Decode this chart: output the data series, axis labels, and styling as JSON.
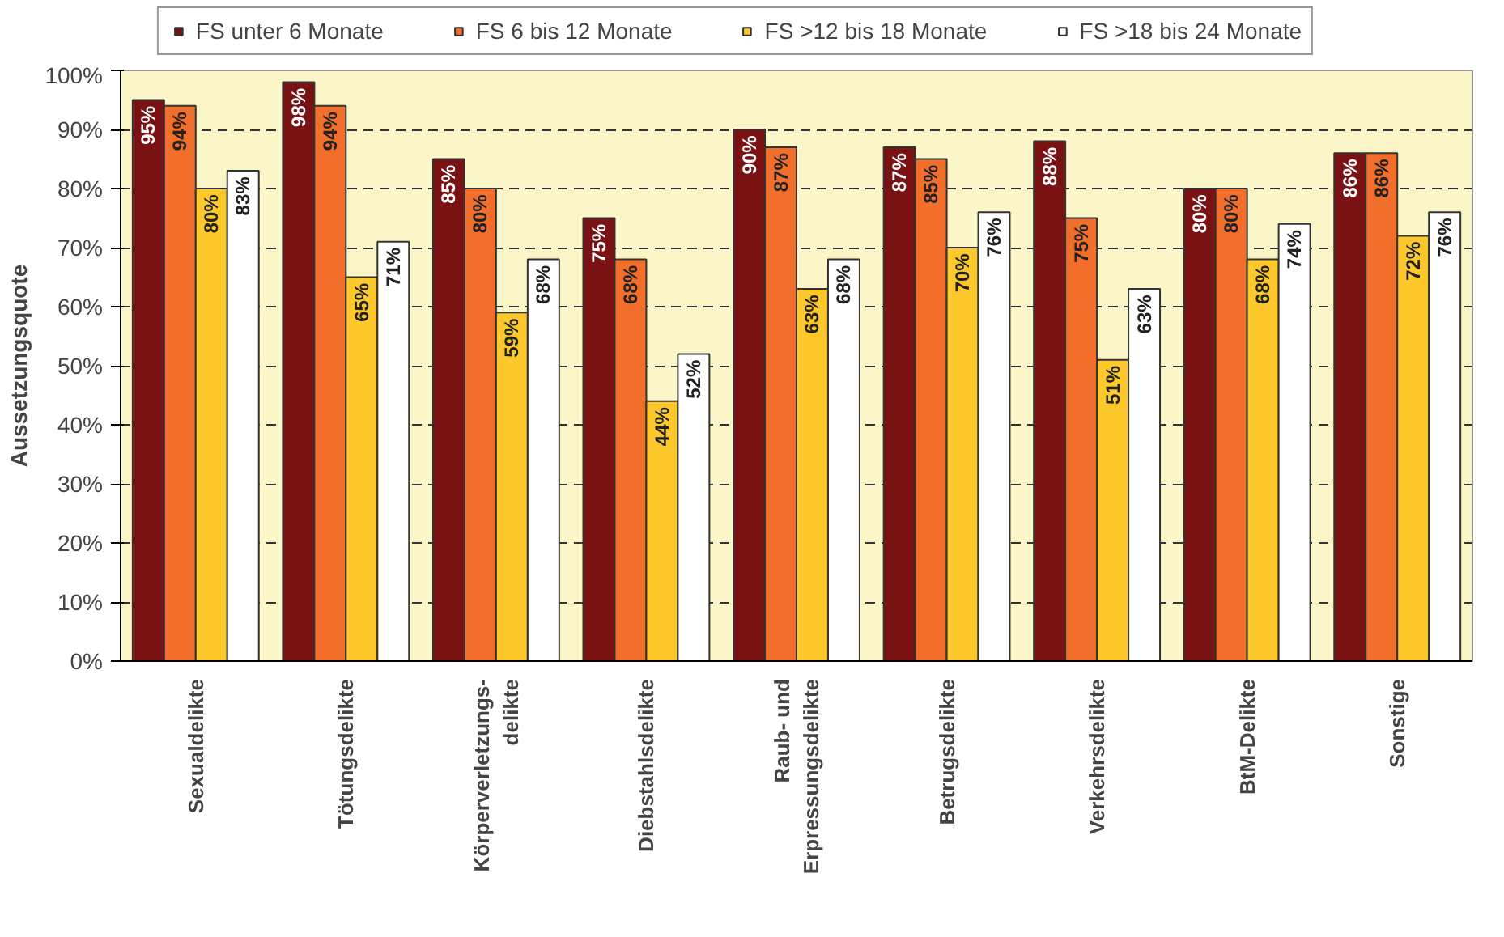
{
  "chart_data": {
    "type": "bar",
    "ylabel": "Aussetzungsquote",
    "categories": [
      "Sexualdelikte",
      "Tötungsdelikte",
      "Körperverletzungs-\ndelikte",
      "Diebstahlsdelikte",
      "Raub- und\nErpressungsdelikte",
      "Betrugsdelikte",
      "Verkehrsdelikte",
      "BtM-Delikte",
      "Sonstige"
    ],
    "series": [
      {
        "name": "FS unter 6 Monate",
        "color": "#7a1214",
        "values": [
          95,
          98,
          85,
          75,
          90,
          87,
          88,
          80,
          86
        ],
        "value_labels": [
          "95%",
          "98%",
          "85%",
          "75%",
          "90%",
          "87%",
          "88%",
          "80%",
          "86%"
        ]
      },
      {
        "name": "FS 6 bis 12 Monate",
        "color": "#f26e2b",
        "values": [
          94,
          94,
          80,
          68,
          87,
          85,
          75,
          80,
          86
        ],
        "value_labels": [
          "94%",
          "94%",
          "80%",
          "68%",
          "87%",
          "85%",
          "75%",
          "80%",
          "86%"
        ]
      },
      {
        "name": "FS >12 bis 18 Monate",
        "color": "#fdc82c",
        "values": [
          80,
          65,
          59,
          44,
          63,
          70,
          51,
          68,
          72
        ],
        "value_labels": [
          "80%",
          "65%",
          "59%",
          "44%",
          "63%",
          "70%",
          "51%",
          "68%",
          "72%"
        ]
      },
      {
        "name": "FS >18 bis 24 Monate",
        "color": "#ffffff",
        "values": [
          83,
          71,
          68,
          52,
          68,
          76,
          63,
          74,
          76
        ],
        "value_labels": [
          "83%",
          "71%",
          "68%",
          "52%",
          "68%",
          "76%",
          "63%",
          "74%",
          "76%"
        ]
      }
    ],
    "ylim": [
      0,
      100
    ],
    "yticks": [
      {
        "value": 0,
        "label": "0%"
      },
      {
        "value": 10,
        "label": "10%"
      },
      {
        "value": 20,
        "label": "20%"
      },
      {
        "value": 30,
        "label": "30%"
      },
      {
        "value": 40,
        "label": "40%"
      },
      {
        "value": 50,
        "label": "50%"
      },
      {
        "value": 60,
        "label": "60%"
      },
      {
        "value": 70,
        "label": "70%"
      },
      {
        "value": 80,
        "label": "80%"
      },
      {
        "value": 90,
        "label": "90%"
      },
      {
        "value": 100,
        "label": "100%"
      }
    ],
    "grid": "y",
    "legend": "top"
  }
}
